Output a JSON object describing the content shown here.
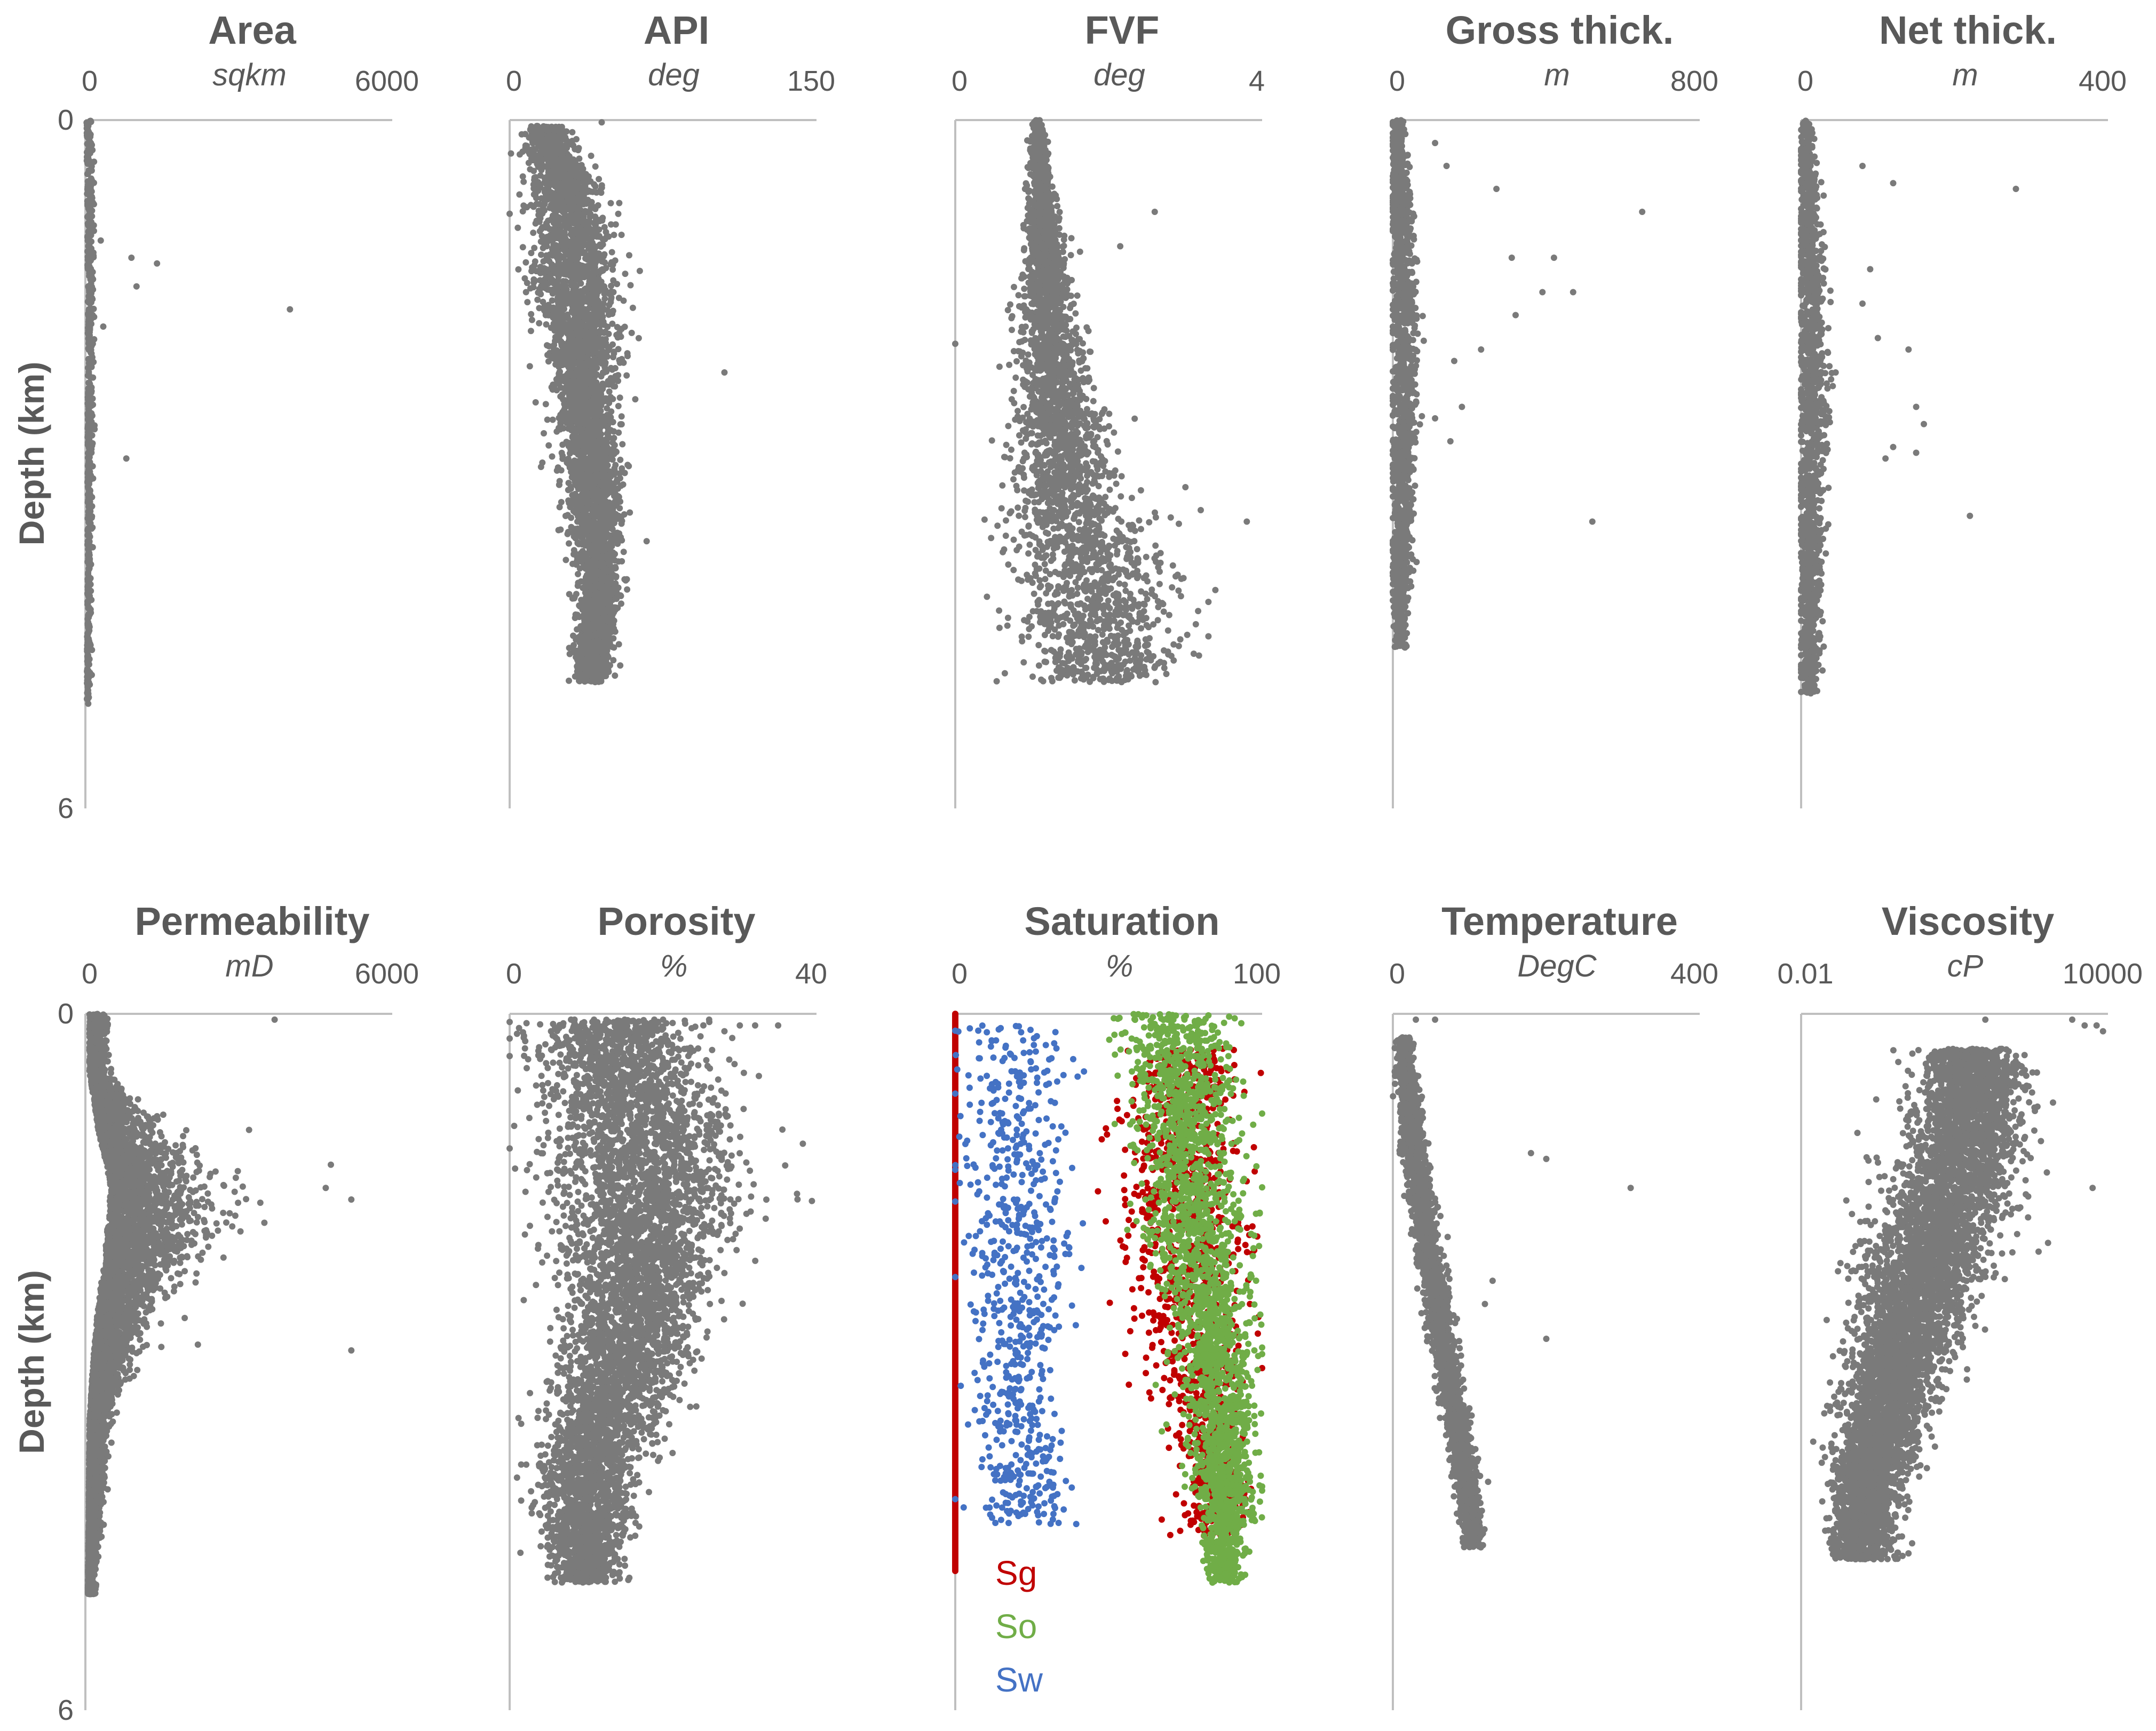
{
  "y_axis_label": "Depth (km)",
  "colors": {
    "points": "#7a7a7a",
    "axis": "#bfbfbf",
    "text": "#595959",
    "sg": "#c00000",
    "so": "#70ad47",
    "sw": "#4472c4"
  },
  "chart_data": [
    {
      "id": "area",
      "type": "scatter",
      "title": "Area",
      "unit": "sqkm",
      "xlim": [
        0,
        6000
      ],
      "xscale": "linear",
      "x_ticks": [
        "0",
        "6000"
      ],
      "ylim": [
        0,
        6
      ],
      "y_ticks": [
        "0",
        "6"
      ],
      "distribution": {
        "core": [
          [
            0,
            20,
            50
          ],
          [
            1,
            40,
            60
          ],
          [
            2,
            50,
            60
          ],
          [
            3,
            40,
            50
          ],
          [
            4,
            40,
            40
          ],
          [
            4.8,
            30,
            30
          ]
        ],
        "depth_range": [
          0,
          5.1
        ],
        "count": 650
      },
      "outliers": [
        [
          300,
          1.05
        ],
        [
          900,
          1.2
        ],
        [
          1400,
          1.25
        ],
        [
          1000,
          1.45
        ],
        [
          4000,
          1.65
        ],
        [
          350,
          1.8
        ],
        [
          800,
          2.95
        ]
      ]
    },
    {
      "id": "api",
      "type": "scatter",
      "title": "API",
      "unit": "deg",
      "xlim": [
        0,
        150
      ],
      "xscale": "linear",
      "x_ticks": [
        "0",
        "150"
      ],
      "ylim": [
        0,
        6
      ],
      "y_ticks": [
        "0",
        "6"
      ],
      "distribution": {
        "core": [
          [
            0.1,
            18,
            5
          ],
          [
            0.8,
            30,
            9
          ],
          [
            1.5,
            33,
            10
          ],
          [
            2.2,
            36,
            8
          ],
          [
            3.0,
            40,
            7
          ],
          [
            3.6,
            42,
            6
          ],
          [
            4.1,
            44,
            5
          ],
          [
            4.8,
            40,
            4
          ]
        ],
        "depth_range": [
          0.05,
          4.9
        ],
        "count": 4200
      },
      "outliers": [
        [
          105,
          2.2
        ],
        [
          8,
          1.5
        ],
        [
          45,
          0.02
        ]
      ]
    },
    {
      "id": "fvf",
      "type": "scatter",
      "title": "FVF",
      "unit": "deg",
      "xlim": [
        0,
        4
      ],
      "xscale": "linear",
      "x_ticks": [
        "0",
        "4"
      ],
      "ylim": [
        0,
        6
      ],
      "y_ticks": [
        "0",
        "6"
      ],
      "distribution": {
        "core": [
          [
            0,
            1.06,
            0.03
          ],
          [
            0.7,
            1.12,
            0.08
          ],
          [
            1.5,
            1.2,
            0.15
          ],
          [
            2.3,
            1.3,
            0.25
          ],
          [
            3.2,
            1.45,
            0.35
          ],
          [
            4.0,
            1.8,
            0.55
          ],
          [
            4.8,
            1.9,
            0.5
          ]
        ],
        "depth_range": [
          0,
          4.9
        ],
        "count": 3200
      },
      "outliers": [
        [
          0,
          1.95
        ],
        [
          2.6,
          0.8
        ],
        [
          2.15,
          1.1
        ],
        [
          3.0,
          3.2
        ],
        [
          3.2,
          3.4
        ],
        [
          3.8,
          3.5
        ],
        [
          3.3,
          4.2
        ],
        [
          3.3,
          4.5
        ]
      ]
    },
    {
      "id": "gross_thick",
      "type": "scatter",
      "title": "Gross thick.",
      "unit": "m",
      "xlim": [
        0,
        800
      ],
      "xscale": "linear",
      "x_ticks": [
        "0",
        "800"
      ],
      "ylim": [
        0,
        6
      ],
      "y_ticks": [
        "0",
        "6"
      ],
      "distribution": {
        "core": [
          [
            0,
            10,
            8
          ],
          [
            1,
            25,
            15
          ],
          [
            2,
            30,
            18
          ],
          [
            3,
            25,
            15
          ],
          [
            4,
            20,
            12
          ],
          [
            4.5,
            20,
            10
          ]
        ],
        "depth_range": [
          0,
          4.6
        ],
        "count": 1500
      },
      "outliers": [
        [
          110,
          0.2
        ],
        [
          650,
          0.8
        ],
        [
          270,
          0.6
        ],
        [
          140,
          0.4
        ],
        [
          310,
          1.2
        ],
        [
          420,
          1.2
        ],
        [
          390,
          1.5
        ],
        [
          470,
          1.5
        ],
        [
          320,
          1.7
        ],
        [
          230,
          2.0
        ],
        [
          160,
          2.1
        ],
        [
          180,
          2.5
        ],
        [
          110,
          2.6
        ],
        [
          520,
          3.5
        ],
        [
          150,
          2.8
        ]
      ]
    },
    {
      "id": "net_thick",
      "type": "scatter",
      "title": "Net thick.",
      "unit": "m",
      "xlim": [
        0,
        400
      ],
      "xscale": "linear",
      "x_ticks": [
        "0",
        "400"
      ],
      "ylim": [
        0,
        6
      ],
      "y_ticks": [
        "0",
        "6"
      ],
      "distribution": {
        "core": [
          [
            0,
            6,
            4
          ],
          [
            1,
            12,
            8
          ],
          [
            2,
            15,
            10
          ],
          [
            3,
            14,
            10
          ],
          [
            4,
            12,
            8
          ],
          [
            4.9,
            10,
            6
          ]
        ],
        "depth_range": [
          0,
          5.0
        ],
        "count": 1500
      },
      "outliers": [
        [
          280,
          0.6
        ],
        [
          80,
          0.4
        ],
        [
          120,
          0.55
        ],
        [
          90,
          1.3
        ],
        [
          80,
          1.6
        ],
        [
          100,
          1.9
        ],
        [
          140,
          2.0
        ],
        [
          150,
          2.5
        ],
        [
          160,
          2.65
        ],
        [
          120,
          2.85
        ],
        [
          110,
          2.95
        ],
        [
          150,
          2.9
        ],
        [
          220,
          3.45
        ],
        [
          45,
          2.2
        ]
      ]
    },
    {
      "id": "permeability",
      "type": "scatter",
      "title": "Permeability",
      "unit": "mD",
      "xlim": [
        0,
        6000
      ],
      "xscale": "linear",
      "x_ticks": [
        "0",
        "6000"
      ],
      "ylim": [
        0,
        6
      ],
      "y_ticks": [
        "0",
        "6"
      ],
      "distribution": {
        "core": [
          [
            0.5,
            80,
            150
          ],
          [
            1.0,
            250,
            500
          ],
          [
            1.5,
            500,
            900
          ],
          [
            2.0,
            400,
            800
          ],
          [
            2.5,
            250,
            500
          ],
          [
            3.0,
            150,
            300
          ],
          [
            3.5,
            80,
            150
          ],
          [
            4.5,
            60,
            80
          ],
          [
            4.9,
            50,
            60
          ]
        ],
        "depth_range": [
          0,
          5.0
        ],
        "count": 6000
      },
      "outliers": [
        [
          3700,
          0.05
        ],
        [
          4800,
          1.3
        ],
        [
          4700,
          1.5
        ],
        [
          5200,
          1.6
        ],
        [
          3200,
          1.0
        ],
        [
          5200,
          2.9
        ],
        [
          2200,
          2.85
        ],
        [
          3500,
          1.8
        ],
        [
          2700,
          2.1
        ]
      ]
    },
    {
      "id": "porosity",
      "type": "scatter",
      "title": "Porosity",
      "unit": "%",
      "xlim": [
        0,
        40
      ],
      "xscale": "linear",
      "x_ticks": [
        "0",
        "40"
      ],
      "ylim": [
        0,
        6
      ],
      "y_ticks": [
        "0",
        "6"
      ],
      "distribution": {
        "core": [
          [
            0.4,
            14,
            5
          ],
          [
            1.0,
            17,
            6
          ],
          [
            1.5,
            18,
            6
          ],
          [
            2.0,
            17,
            5
          ],
          [
            2.5,
            16,
            4.5
          ],
          [
            3.0,
            15,
            4
          ],
          [
            3.5,
            12,
            3.5
          ],
          [
            4.0,
            10,
            3
          ],
          [
            4.8,
            10,
            2
          ]
        ],
        "depth_range": [
          0.05,
          4.9
        ],
        "count": 5500
      },
      "outliers": [
        [
          30,
          0.1
        ],
        [
          32,
          0.1
        ],
        [
          35,
          0.1
        ],
        [
          28,
          0.15
        ],
        [
          26,
          0.05
        ],
        [
          8,
          0.05
        ],
        [
          11,
          0.05
        ],
        [
          15,
          0.05
        ],
        [
          20,
          0.05
        ]
      ]
    },
    {
      "id": "saturation",
      "type": "scatter",
      "title": "Saturation",
      "unit": "%",
      "xlim": [
        0,
        100
      ],
      "xscale": "linear",
      "x_ticks": [
        "0",
        "100"
      ],
      "ylim": [
        0,
        6
      ],
      "y_ticks": [
        "0",
        "6"
      ],
      "legend": [
        {
          "label": "Sg",
          "color": "#c00000"
        },
        {
          "label": "So",
          "color": "#70ad47"
        },
        {
          "label": "Sw",
          "color": "#4472c4"
        }
      ],
      "series": [
        {
          "name": "Sg",
          "color": "#c00000",
          "count": 1200,
          "wall_x": 0,
          "wall_depth": [
            0,
            4.8
          ],
          "distribution": {
            "core": [
              [
                0.5,
                75,
                8
              ],
              [
                1.0,
                72,
                9
              ],
              [
                2.0,
                75,
                10
              ],
              [
                3.0,
                78,
                8
              ],
              [
                4.0,
                85,
                5
              ]
            ],
            "depth_range": [
              0.3,
              4.5
            ]
          }
        },
        {
          "name": "So",
          "color": "#70ad47",
          "count": 2400,
          "distribution": {
            "core": [
              [
                0.05,
                70,
                10
              ],
              [
                0.8,
                75,
                8
              ],
              [
                2.0,
                80,
                8
              ],
              [
                3.0,
                85,
                6
              ],
              [
                4.0,
                88,
                5
              ],
              [
                4.8,
                88,
                3
              ]
            ],
            "depth_range": [
              0,
              4.9
            ]
          }
        },
        {
          "name": "Sw",
          "color": "#4472c4",
          "count": 700,
          "distribution": {
            "core": [
              [
                0.1,
                20,
                10
              ],
              [
                0.8,
                18,
                8
              ],
              [
                1.3,
                20,
                9
              ],
              [
                1.8,
                20,
                10
              ],
              [
                2.5,
                20,
                7
              ],
              [
                3.5,
                20,
                6
              ],
              [
                4.3,
                25,
                8
              ]
            ],
            "depth_range": [
              0.1,
              4.4
            ]
          }
        }
      ]
    },
    {
      "id": "temperature",
      "type": "scatter",
      "title": "Temperature",
      "unit": "DegC",
      "xlim": [
        0,
        400
      ],
      "xscale": "linear",
      "x_ticks": [
        "0",
        "400"
      ],
      "ylim": [
        0,
        6
      ],
      "y_ticks": [
        "0",
        "6"
      ],
      "distribution": {
        "core": [
          [
            0.3,
            15,
            5
          ],
          [
            1.0,
            25,
            8
          ],
          [
            2.0,
            45,
            8
          ],
          [
            3.0,
            70,
            8
          ],
          [
            4.0,
            95,
            8
          ],
          [
            4.5,
            105,
            6
          ]
        ],
        "depth_range": [
          0.2,
          4.6
        ],
        "count": 2500
      },
      "outliers": [
        [
          30,
          0.05
        ],
        [
          55,
          0.05
        ],
        [
          180,
          1.2
        ],
        [
          200,
          1.25
        ],
        [
          310,
          1.5
        ],
        [
          200,
          2.8
        ],
        [
          130,
          2.3
        ],
        [
          120,
          2.5
        ]
      ]
    },
    {
      "id": "viscosity",
      "type": "scatter",
      "title": "Viscosity",
      "unit": "cP",
      "xlim": [
        0.01,
        10000
      ],
      "xscale": "log",
      "x_ticks": [
        "0.01",
        "10000"
      ],
      "ylim": [
        0,
        6
      ],
      "y_ticks": [
        "0",
        "6"
      ],
      "distribution": {
        "core": [
          [
            0.8,
            1.3,
            0.5
          ],
          [
            1.3,
            1.1,
            0.6
          ],
          [
            2.0,
            0.5,
            0.6
          ],
          [
            2.8,
            0.0,
            0.5
          ],
          [
            3.5,
            -0.4,
            0.4
          ],
          [
            4.3,
            -0.8,
            0.3
          ]
        ],
        "depth_range": [
          0.3,
          4.7
        ],
        "count": 6000
      },
      "outliers": [
        [
          3500,
          0.1
        ],
        [
          6000,
          0.1
        ],
        [
          8000,
          0.15
        ],
        [
          2000,
          0.05
        ],
        [
          5000,
          1.5
        ],
        [
          40,
          0.05
        ]
      ]
    }
  ]
}
